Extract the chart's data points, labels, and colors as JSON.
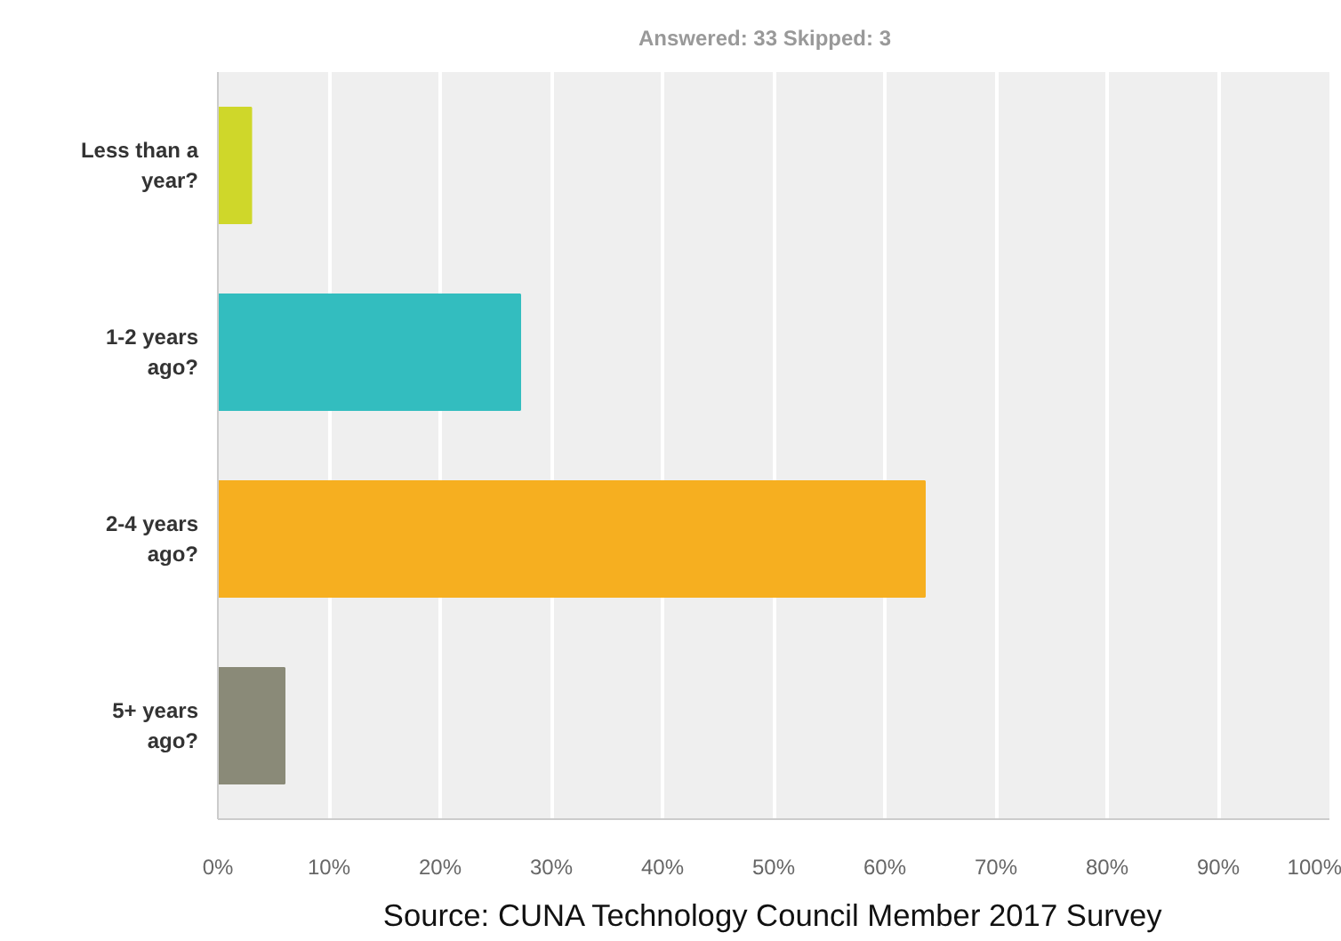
{
  "chart_data": {
    "type": "bar",
    "orientation": "horizontal",
    "title": "Answered: 33    Skipped: 3",
    "categories": [
      "Less than a year?",
      "1-2 years ago?",
      "2-4 years ago?",
      "5+ years ago?"
    ],
    "values": [
      3.0,
      27.2,
      63.6,
      6.0
    ],
    "colors": [
      "#cfd72a",
      "#33bdbf",
      "#f6af20",
      "#8a8a78"
    ],
    "xlim": [
      0,
      100
    ],
    "xticks": [
      {
        "value": 0,
        "label": "0%"
      },
      {
        "value": 10,
        "label": "10%"
      },
      {
        "value": 20,
        "label": "20%"
      },
      {
        "value": 30,
        "label": "30%"
      },
      {
        "value": 40,
        "label": "40%"
      },
      {
        "value": 50,
        "label": "50%"
      },
      {
        "value": 60,
        "label": "60%"
      },
      {
        "value": 70,
        "label": "70%"
      },
      {
        "value": 80,
        "label": "80%"
      },
      {
        "value": 90,
        "label": "90%"
      },
      {
        "value": 100,
        "label": "100%"
      }
    ],
    "grid": "x",
    "annotations": [
      "Source: CUNA Technology Council Member 2017 Survey"
    ]
  }
}
